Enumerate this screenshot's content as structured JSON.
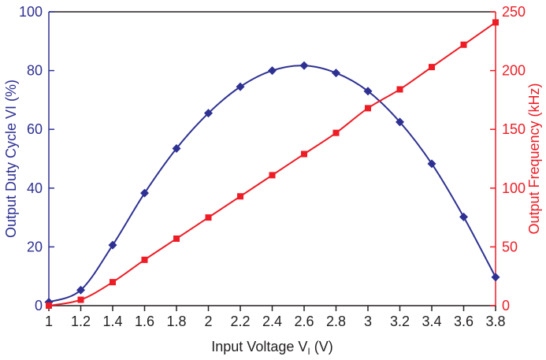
{
  "chart_data": {
    "type": "line",
    "xlabel": "Input Voltage V",
    "xlabel_subscript": "I",
    "xlabel_suffix": " (V)",
    "ylabel_left": "Output Duty Cycle VI (%)",
    "ylabel_right": "Output Frequency (kHz)",
    "xlim": [
      1,
      3.8
    ],
    "ylim_left": [
      0,
      100
    ],
    "ylim_right": [
      0,
      250
    ],
    "x_ticks": [
      "1",
      "1.2",
      "1.4",
      "1.6",
      "1.8",
      "2",
      "2.2",
      "2.4",
      "2.6",
      "2.8",
      "3",
      "3.2",
      "3.4",
      "3.6",
      "3.8"
    ],
    "y_left_ticks": [
      "0",
      "20",
      "40",
      "60",
      "80",
      "100"
    ],
    "y_right_ticks": [
      "0",
      "50",
      "100",
      "150",
      "200",
      "250"
    ],
    "grid": false,
    "colors": {
      "left_axis": "#2e3192",
      "right_axis": "#ee1c25",
      "frame": "#231f20"
    },
    "series": [
      {
        "axis": "left",
        "marker": "diamond",
        "color": "#2e3192",
        "x": [
          1,
          1.2,
          1.4,
          1.6,
          1.8,
          2,
          2.2,
          2.4,
          2.6,
          2.8,
          3,
          3.2,
          3.4,
          3.6,
          3.8
        ],
        "values": [
          1.2,
          5.3,
          20.6,
          38.3,
          53.5,
          65.5,
          74.5,
          80.0,
          81.7,
          79.2,
          73.0,
          62.5,
          48.3,
          30.2,
          9.7
        ]
      },
      {
        "axis": "right",
        "marker": "square",
        "color": "#ee1c25",
        "x": [
          1,
          1.2,
          1.4,
          1.6,
          1.8,
          2,
          2.2,
          2.4,
          2.6,
          2.8,
          3,
          3.2,
          3.4,
          3.6,
          3.8
        ],
        "values": [
          0,
          5,
          20,
          39,
          57,
          75,
          93,
          111,
          129,
          147,
          168,
          184,
          203,
          222,
          241
        ]
      }
    ]
  }
}
